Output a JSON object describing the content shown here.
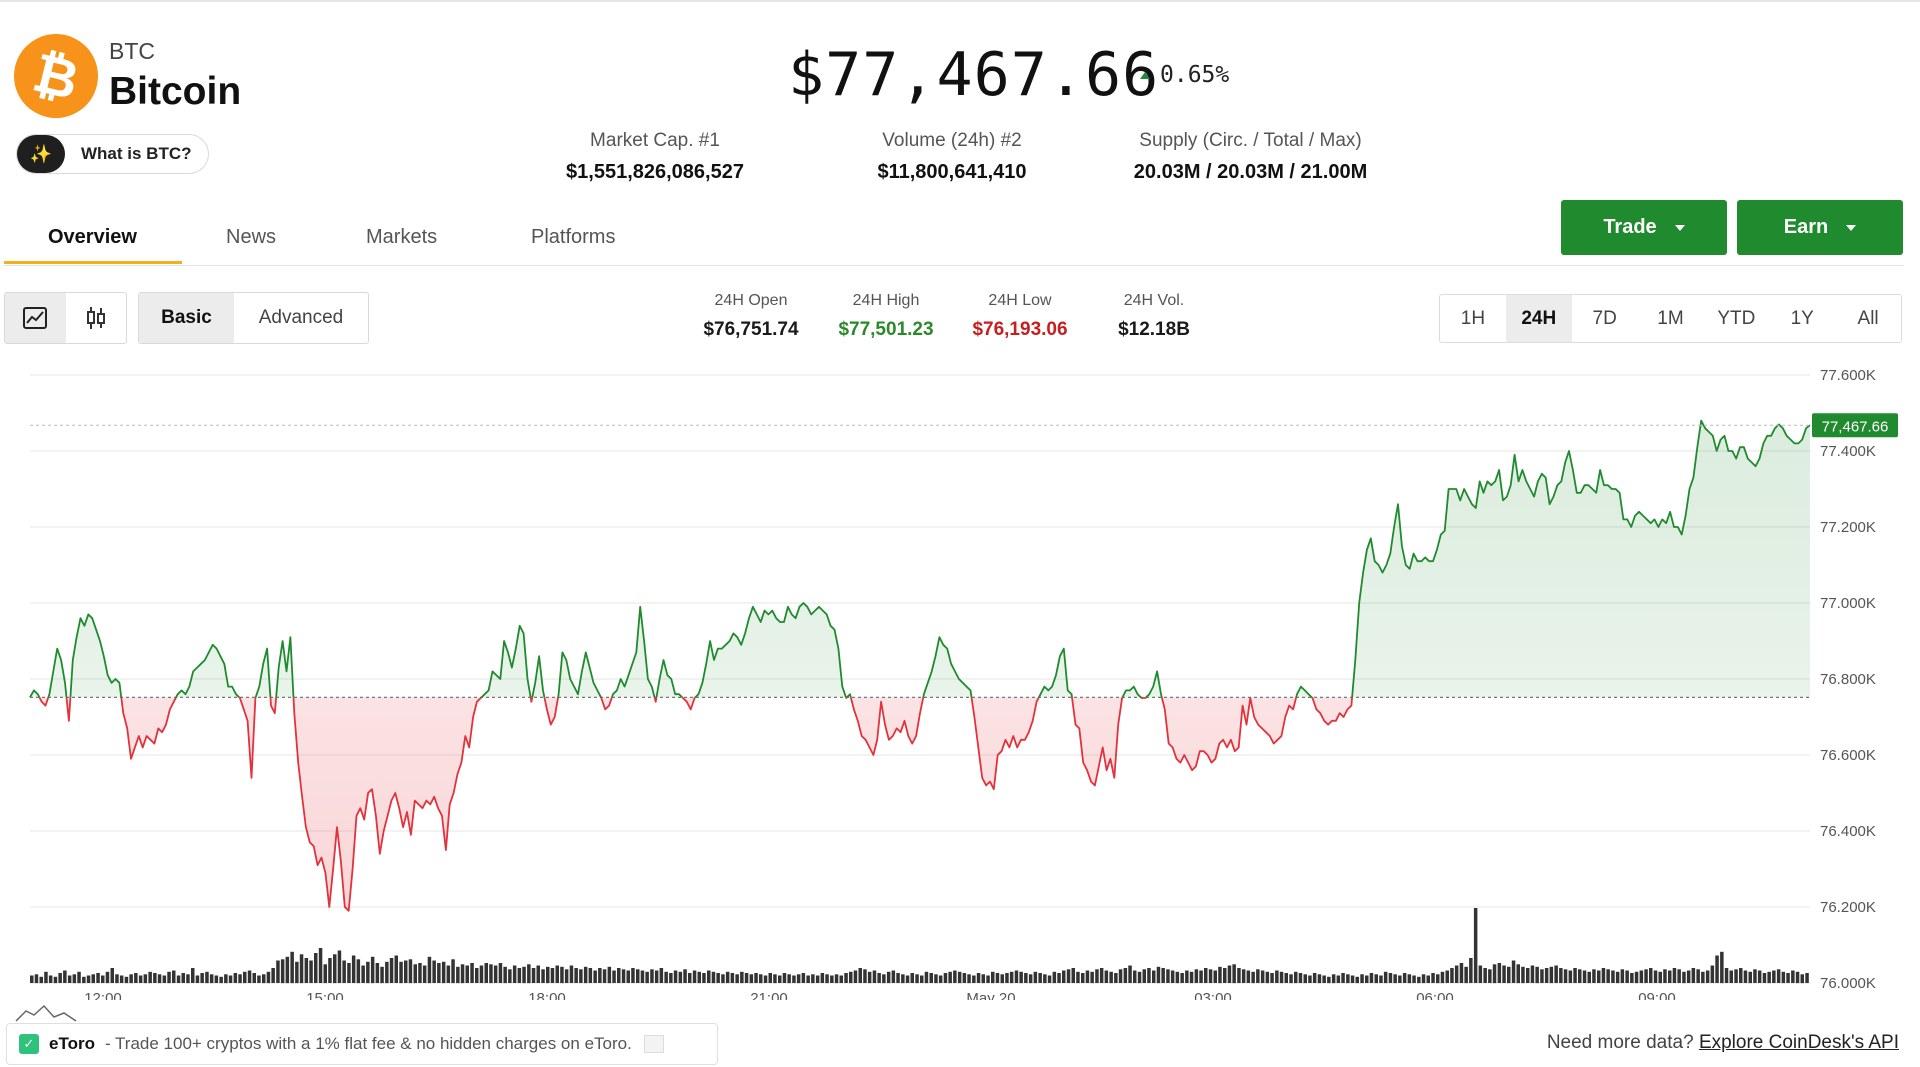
{
  "coin": {
    "symbol": "BTC",
    "name": "Bitcoin",
    "logo_glyph": "₿",
    "what_is_label": "What is BTC?"
  },
  "price": {
    "value": "$77,467.66",
    "change": "0.65%",
    "change_direction": "up"
  },
  "stats": {
    "market_cap_label": "Market Cap. #1",
    "market_cap_value": "$1,551,826,086,527",
    "volume_label": "Volume (24h) #2",
    "volume_value": "$11,800,641,410",
    "supply_label": "Supply (Circ. / Total / Max)",
    "supply_value": "20.03M / 20.03M / 21.00M"
  },
  "actions": {
    "trade_label": "Trade",
    "earn_label": "Earn"
  },
  "tabs": [
    {
      "label": "Overview",
      "active": true
    },
    {
      "label": "News",
      "active": false
    },
    {
      "label": "Markets",
      "active": false
    },
    {
      "label": "Platforms",
      "active": false
    }
  ],
  "chart_controls": {
    "chart_type_icons": [
      "line-chart-icon",
      "candlestick-icon"
    ],
    "mode_basic": "Basic",
    "mode_advanced": "Advanced",
    "ranges": [
      "1H",
      "24H",
      "7D",
      "1M",
      "YTD",
      "1Y",
      "All"
    ],
    "selected_range": "24H"
  },
  "day_stats": {
    "open_label": "24H Open",
    "open_value": "$76,751.74",
    "high_label": "24H High",
    "high_value": "$77,501.23",
    "low_label": "24H Low",
    "low_value": "$76,193.06",
    "vol_label": "24H Vol.",
    "vol_value": "$12.18B"
  },
  "colors": {
    "up": "#1f8a2e",
    "down": "#e2323c",
    "accent": "#f2b01e",
    "btc_orange": "#f7931a",
    "high_text": "#2a8a2a",
    "low_text": "#c81e1e"
  },
  "chart_data": {
    "type": "line",
    "y_ticks": [
      "77.600K",
      "77.400K",
      "77.200K",
      "77.000K",
      "76.800K",
      "76.600K",
      "76.400K",
      "76.200K",
      "76.000K"
    ],
    "x_ticks": [
      "12:00",
      "15:00",
      "18:00",
      "21:00",
      "May 20",
      "03:00",
      "06:00",
      "09:00"
    ],
    "ylim": [
      76000,
      77600
    ],
    "baseline": 76751.74,
    "current_label": "77,467.66",
    "current_value": 77467.66,
    "price_series": [
      76752,
      76770,
      76760,
      76740,
      76730,
      76760,
      76820,
      76880,
      76850,
      76790,
      76690,
      76850,
      76910,
      76960,
      76940,
      76970,
      76960,
      76930,
      76900,
      76860,
      76810,
      76790,
      76800,
      76790,
      76710,
      76670,
      76590,
      76620,
      76650,
      76620,
      76650,
      76640,
      76630,
      76670,
      76660,
      76680,
      76720,
      76740,
      76760,
      76770,
      76760,
      76780,
      76820,
      76830,
      76840,
      76850,
      76870,
      76890,
      76880,
      76860,
      76840,
      76780,
      76780,
      76760,
      76750,
      76720,
      76690,
      76540,
      76750,
      76780,
      76840,
      76880,
      76730,
      76710,
      76830,
      76900,
      76820,
      76910,
      76710,
      76580,
      76490,
      76410,
      76370,
      76360,
      76310,
      76330,
      76290,
      76200,
      76300,
      76410,
      76320,
      76200,
      76190,
      76300,
      76440,
      76460,
      76430,
      76500,
      76510,
      76440,
      76340,
      76400,
      76440,
      76480,
      76500,
      76460,
      76410,
      76450,
      76390,
      76480,
      76470,
      76460,
      76480,
      76470,
      76490,
      76460,
      76440,
      76350,
      76470,
      76500,
      76550,
      76580,
      76650,
      76620,
      76700,
      76740,
      76750,
      76760,
      76770,
      76820,
      76810,
      76800,
      76900,
      76870,
      76830,
      76880,
      76940,
      76920,
      76800,
      76740,
      76790,
      76860,
      76770,
      76720,
      76680,
      76700,
      76760,
      76870,
      76850,
      76800,
      76780,
      76760,
      76820,
      76870,
      76830,
      76790,
      76770,
      76750,
      76720,
      76730,
      76760,
      76770,
      76800,
      76780,
      76810,
      76840,
      76870,
      76990,
      76900,
      76800,
      76780,
      76740,
      76800,
      76850,
      76810,
      76800,
      76760,
      76760,
      76750,
      76740,
      76720,
      76750,
      76760,
      76790,
      76840,
      76900,
      76850,
      76880,
      76880,
      76890,
      76900,
      76920,
      76910,
      76890,
      76920,
      76960,
      76990,
      76970,
      76950,
      76980,
      76970,
      76980,
      76960,
      76950,
      76950,
      76990,
      76970,
      76960,
      76990,
      77000,
      76990,
      76970,
      76980,
      76990,
      76980,
      76970,
      76940,
      76930,
      76880,
      76780,
      76750,
      76760,
      76720,
      76690,
      76650,
      76640,
      76620,
      76600,
      76640,
      76740,
      76680,
      76640,
      76650,
      76670,
      76660,
      76690,
      76650,
      76630,
      76650,
      76710,
      76760,
      76790,
      76820,
      76860,
      76910,
      76890,
      76880,
      76840,
      76820,
      76800,
      76790,
      76780,
      76770,
      76700,
      76620,
      76540,
      76520,
      76530,
      76510,
      76600,
      76610,
      76640,
      76620,
      76650,
      76620,
      76640,
      76640,
      76660,
      76690,
      76740,
      76760,
      76780,
      76770,
      76780,
      76810,
      76860,
      76880,
      76770,
      76760,
      76680,
      76670,
      76580,
      76560,
      76530,
      76520,
      76570,
      76620,
      76560,
      76590,
      76540,
      76680,
      76750,
      76770,
      76770,
      76780,
      76760,
      76750,
      76750,
      76760,
      76780,
      76820,
      76760,
      76720,
      76630,
      76620,
      76590,
      76580,
      76600,
      76580,
      76560,
      76570,
      76610,
      76610,
      76600,
      76580,
      76590,
      76630,
      76640,
      76620,
      76640,
      76610,
      76620,
      76730,
      76680,
      76750,
      76700,
      76680,
      76670,
      76660,
      76650,
      76630,
      76640,
      76650,
      76700,
      76730,
      76720,
      76760,
      76780,
      76770,
      76760,
      76750,
      76720,
      76710,
      76690,
      76680,
      76690,
      76690,
      76710,
      76700,
      76720,
      76730,
      76850,
      77000,
      77080,
      77140,
      77170,
      77110,
      77100,
      77080,
      77100,
      77130,
      77200,
      77260,
      77150,
      77100,
      77090,
      77130,
      77110,
      77110,
      77120,
      77110,
      77110,
      77140,
      77180,
      77190,
      77300,
      77300,
      77300,
      77270,
      77300,
      77280,
      77260,
      77250,
      77320,
      77290,
      77320,
      77310,
      77320,
      77350,
      77270,
      77280,
      77310,
      77390,
      77320,
      77350,
      77320,
      77300,
      77280,
      77320,
      77340,
      77330,
      77260,
      77280,
      77310,
      77320,
      77370,
      77400,
      77350,
      77290,
      77290,
      77310,
      77310,
      77300,
      77290,
      77350,
      77310,
      77310,
      77300,
      77300,
      77290,
      77220,
      77220,
      77200,
      77230,
      77240,
      77230,
      77220,
      77210,
      77220,
      77200,
      77220,
      77210,
      77240,
      77200,
      77200,
      77180,
      77230,
      77300,
      77330,
      77410,
      77480,
      77460,
      77450,
      77440,
      77400,
      77430,
      77440,
      77400,
      77400,
      77380,
      77410,
      77410,
      77380,
      77370,
      77360,
      77380,
      77420,
      77440,
      77440,
      77460,
      77470,
      77460,
      77440,
      77430,
      77420,
      77420,
      77430,
      77460,
      77468
    ],
    "volume_series": [
      6,
      7,
      5,
      9,
      6,
      5,
      8,
      10,
      6,
      7,
      9,
      5,
      6,
      7,
      8,
      6,
      9,
      12,
      7,
      6,
      5,
      7,
      8,
      6,
      7,
      9,
      8,
      7,
      6,
      9,
      10,
      6,
      8,
      7,
      12,
      6,
      8,
      9,
      7,
      6,
      5,
      7,
      6,
      8,
      7,
      9,
      10,
      8,
      6,
      7,
      9,
      12,
      18,
      19,
      21,
      25,
      17,
      23,
      20,
      18,
      24,
      28,
      15,
      20,
      23,
      26,
      18,
      16,
      22,
      19,
      14,
      17,
      21,
      16,
      13,
      17,
      20,
      22,
      17,
      18,
      19,
      15,
      16,
      14,
      21,
      18,
      16,
      17,
      14,
      19,
      13,
      15,
      14,
      16,
      12,
      14,
      16,
      15,
      14,
      16,
      13,
      11,
      14,
      12,
      13,
      15,
      12,
      14,
      11,
      13,
      12,
      14,
      13,
      11,
      14,
      12,
      11,
      13,
      12,
      10,
      12,
      11,
      13,
      10,
      12,
      11,
      10,
      12,
      11,
      10,
      9,
      11,
      10,
      12,
      9,
      8,
      10,
      9,
      11,
      8,
      10,
      9,
      8,
      10,
      9,
      8,
      7,
      9,
      8,
      7,
      9,
      8,
      7,
      8,
      7,
      6,
      8,
      7,
      6,
      8,
      7,
      6,
      7,
      8,
      6,
      7,
      6,
      8,
      7,
      6,
      7,
      6,
      8,
      9,
      10,
      12,
      11,
      9,
      10,
      8,
      7,
      9,
      10,
      8,
      7,
      6,
      8,
      7,
      6,
      9,
      8,
      7,
      6,
      8,
      9,
      10,
      9,
      8,
      7,
      6,
      8,
      7,
      6,
      9,
      8,
      7,
      8,
      9,
      10,
      9,
      8,
      7,
      9,
      8,
      7,
      6,
      9,
      8,
      10,
      11,
      12,
      9,
      8,
      10,
      9,
      11,
      12,
      10,
      9,
      8,
      11,
      12,
      14,
      10,
      9,
      11,
      12,
      10,
      13,
      12,
      11,
      10,
      9,
      8,
      10,
      9,
      11,
      10,
      12,
      11,
      10,
      13,
      12,
      14,
      15,
      12,
      11,
      10,
      9,
      11,
      10,
      9,
      8,
      10,
      9,
      8,
      7,
      9,
      8,
      7,
      6,
      8,
      7,
      6,
      5,
      7,
      6,
      8,
      7,
      6,
      5,
      7,
      6,
      8,
      7,
      6,
      9,
      8,
      7,
      6,
      8,
      7,
      6,
      5,
      7,
      6,
      8,
      7,
      9,
      10,
      12,
      14,
      16,
      13,
      20,
      60,
      14,
      12,
      11,
      15,
      16,
      14,
      13,
      18,
      15,
      13,
      12,
      14,
      13,
      11,
      12,
      13,
      14,
      12,
      11,
      10,
      12,
      11,
      10,
      9,
      11,
      10,
      12,
      11,
      10,
      9,
      11,
      10,
      8,
      9,
      10,
      11,
      12,
      10,
      9,
      11,
      10,
      12,
      11,
      9,
      10,
      12,
      11,
      9,
      10,
      14,
      22,
      25,
      12,
      10,
      11,
      12,
      10,
      9,
      11,
      10,
      8,
      9,
      10,
      11,
      9,
      8,
      10,
      9,
      7,
      8
    ]
  },
  "footer": {
    "sponsor_brand": "eToro",
    "sponsor_text": "- Trade 100+ cryptos with a 1% flat fee & no hidden charges on eToro.",
    "more_data_text": "Need more data?",
    "api_link": "Explore CoinDesk's API"
  }
}
